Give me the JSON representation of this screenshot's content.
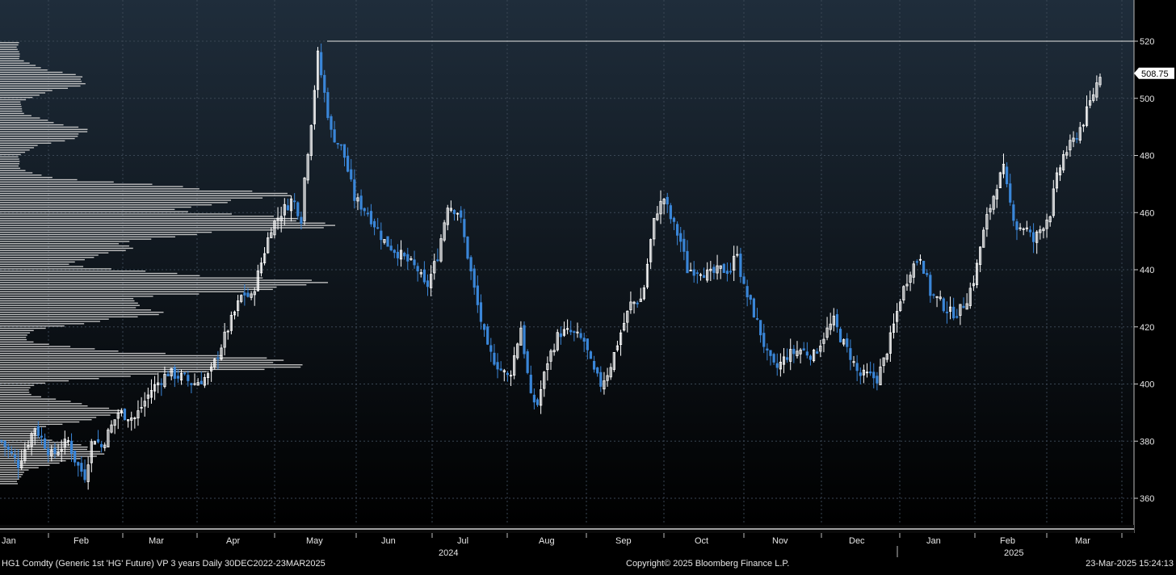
{
  "chart_data": {
    "type": "candlestick",
    "title": "HG1 Comdty (Generic 1st 'HG' Future) VP 3 years",
    "frequency": "Daily",
    "date_range": "30DEC2022-23MAR2025",
    "ylim": [
      350,
      540
    ],
    "yticks": [
      360,
      380,
      400,
      420,
      440,
      460,
      480,
      500,
      520
    ],
    "last_price": "508.75",
    "reference_line": 520,
    "grid": true,
    "x_months": [
      "Jan",
      "Feb",
      "Mar",
      "Apr",
      "May",
      "Jun",
      "Jul",
      "Aug",
      "Sep",
      "Oct",
      "Nov",
      "Dec",
      "Jan",
      "Feb",
      "Mar"
    ],
    "x_years": [
      "2024",
      "2025"
    ],
    "colors": {
      "up": "#ffffff",
      "down": "#3a86d8",
      "volume_profile": "#c9c9c9",
      "grid": "#3a4654",
      "background_top": "#1f2d3b",
      "background_bottom": "#000000"
    },
    "price_path": [
      [
        0,
        380
      ],
      [
        10,
        372
      ],
      [
        20,
        385
      ],
      [
        30,
        375
      ],
      [
        40,
        380
      ],
      [
        45,
        372
      ],
      [
        50,
        368
      ],
      [
        55,
        382
      ],
      [
        60,
        378
      ],
      [
        70,
        390
      ],
      [
        80,
        388
      ],
      [
        90,
        398
      ],
      [
        100,
        404
      ],
      [
        110,
        402
      ],
      [
        115,
        400
      ],
      [
        125,
        403
      ],
      [
        135,
        418
      ],
      [
        145,
        432
      ],
      [
        150,
        430
      ],
      [
        162,
        455
      ],
      [
        168,
        460
      ],
      [
        175,
        465
      ],
      [
        180,
        458
      ],
      [
        182,
        472
      ],
      [
        186,
        492
      ],
      [
        190,
        515
      ],
      [
        193,
        505
      ],
      [
        198,
        488
      ],
      [
        205,
        482
      ],
      [
        212,
        465
      ],
      [
        220,
        460
      ],
      [
        230,
        450
      ],
      [
        240,
        445
      ],
      [
        250,
        440
      ],
      [
        255,
        433
      ],
      [
        262,
        445
      ],
      [
        268,
        463
      ],
      [
        275,
        460
      ],
      [
        280,
        445
      ],
      [
        285,
        430
      ],
      [
        292,
        412
      ],
      [
        300,
        405
      ],
      [
        305,
        402
      ],
      [
        312,
        420
      ],
      [
        318,
        395
      ],
      [
        322,
        393
      ],
      [
        328,
        408
      ],
      [
        335,
        418
      ],
      [
        342,
        418
      ],
      [
        350,
        415
      ],
      [
        355,
        405
      ],
      [
        360,
        400
      ],
      [
        365,
        405
      ],
      [
        372,
        418
      ],
      [
        378,
        428
      ],
      [
        385,
        430
      ],
      [
        390,
        450
      ],
      [
        393,
        460
      ],
      [
        398,
        465
      ],
      [
        402,
        458
      ],
      [
        408,
        450
      ],
      [
        412,
        440
      ],
      [
        420,
        440
      ],
      [
        425,
        438
      ],
      [
        432,
        440
      ],
      [
        438,
        440
      ],
      [
        442,
        447
      ],
      [
        445,
        435
      ],
      [
        450,
        428
      ],
      [
        455,
        420
      ],
      [
        460,
        410
      ],
      [
        465,
        405
      ],
      [
        472,
        410
      ],
      [
        480,
        412
      ],
      [
        488,
        410
      ],
      [
        495,
        418
      ],
      [
        500,
        422
      ],
      [
        505,
        415
      ],
      [
        510,
        410
      ],
      [
        515,
        403
      ],
      [
        520,
        403
      ],
      [
        526,
        402
      ],
      [
        530,
        408
      ],
      [
        535,
        418
      ],
      [
        540,
        430
      ],
      [
        546,
        440
      ],
      [
        552,
        445
      ],
      [
        558,
        432
      ],
      [
        565,
        428
      ],
      [
        570,
        425
      ],
      [
        575,
        425
      ],
      [
        580,
        430
      ],
      [
        585,
        438
      ],
      [
        588,
        448
      ],
      [
        592,
        458
      ],
      [
        598,
        470
      ],
      [
        602,
        475
      ],
      [
        605,
        465
      ],
      [
        610,
        455
      ],
      [
        615,
        455
      ],
      [
        620,
        450
      ],
      [
        625,
        455
      ],
      [
        630,
        460
      ],
      [
        633,
        470
      ],
      [
        638,
        480
      ],
      [
        644,
        485
      ],
      [
        650,
        492
      ],
      [
        655,
        500
      ],
      [
        660,
        508.75
      ]
    ],
    "volume_profile_peaks": [
      {
        "price": 506,
        "size": 0.19
      },
      {
        "price": 488,
        "size": 0.19
      },
      {
        "price": 466,
        "size": 0.72
      },
      {
        "price": 456,
        "size": 0.87
      },
      {
        "price": 447,
        "size": 0.28
      },
      {
        "price": 435,
        "size": 0.83
      },
      {
        "price": 425,
        "size": 0.38
      },
      {
        "price": 407,
        "size": 0.8
      },
      {
        "price": 390,
        "size": 0.28
      },
      {
        "price": 376,
        "size": 0.23
      }
    ]
  },
  "footer": {
    "left": "HG1 Comdty (Generic 1st 'HG' Future) VP 3 years  Daily 30DEC2022-23MAR2025",
    "center": "Copyright© 2025 Bloomberg Finance L.P.",
    "right": "23-Mar-2025 15:24:13"
  }
}
